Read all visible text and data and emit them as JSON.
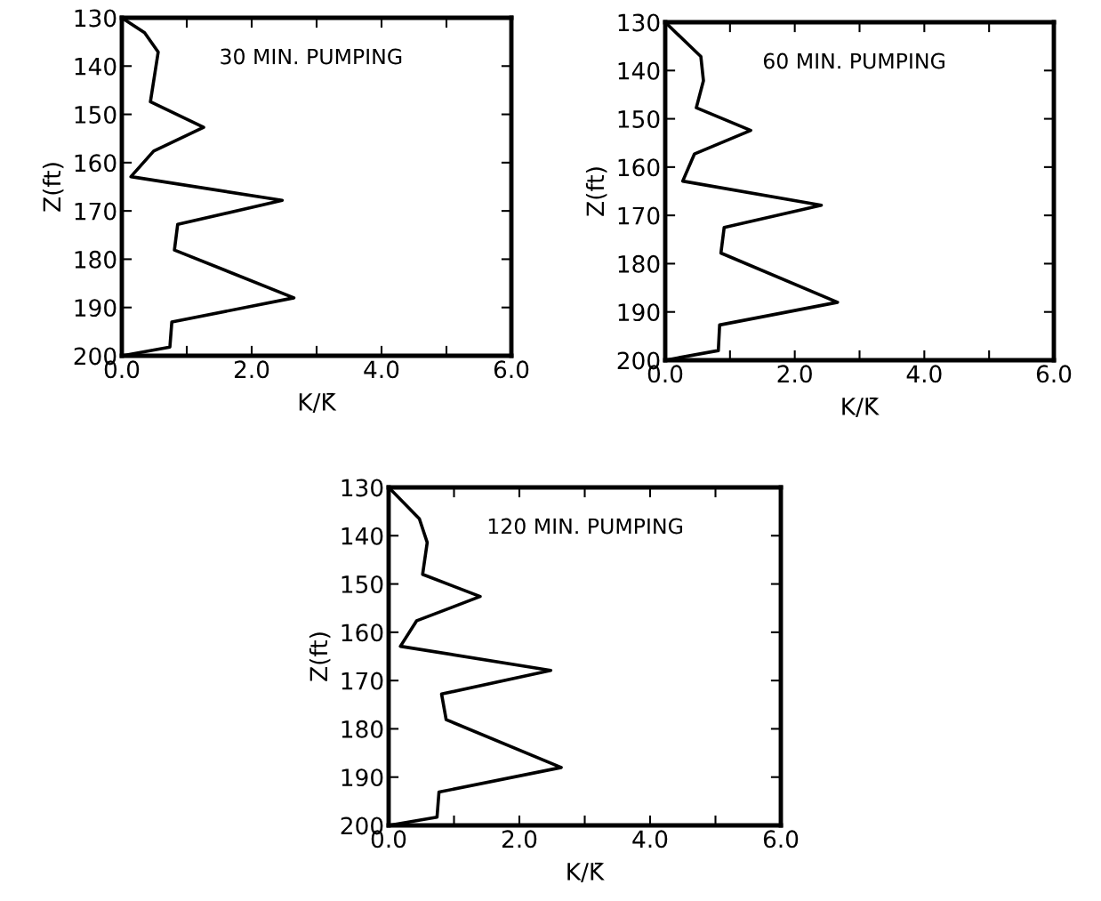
{
  "chart_data": [
    {
      "type": "line",
      "title": "30 MIN. PUMPING",
      "xlabel": "K/K̄",
      "ylabel": "Z(ft)",
      "series": [
        {
          "color": "#000000",
          "x": [
            0,
            0.35,
            0.56,
            0.44,
            1.26,
            0.49,
            0.14,
            2.47,
            0.86,
            0.81,
            2.65,
            0.77,
            0.74,
            0
          ],
          "values": [
            130,
            133.1,
            137.1,
            147.4,
            152.7,
            157.6,
            162.9,
            167.8,
            172.8,
            178.1,
            188,
            193,
            198.2,
            200
          ]
        }
      ],
      "xlim": [
        0,
        6
      ],
      "xticks": [
        {
          "value": 0,
          "label": "0.0"
        },
        {
          "value": 1,
          "label": null
        },
        {
          "value": 2,
          "label": "2.0"
        },
        {
          "value": 3,
          "label": null
        },
        {
          "value": 4,
          "label": "4.0"
        },
        {
          "value": 5,
          "label": null
        },
        {
          "value": 6,
          "label": "6.0"
        }
      ],
      "ylim": [
        200,
        130
      ],
      "yticks": [
        130,
        140,
        150,
        160,
        170,
        180,
        190,
        200
      ],
      "grid": false,
      "legend": false,
      "marker": "none",
      "line_style": "solid"
    },
    {
      "type": "line",
      "title": "60 MIN. PUMPING",
      "xlabel": "K/K̄",
      "ylabel": "Z(ft)",
      "series": [
        {
          "color": "#000000",
          "x": [
            0,
            0.55,
            0.59,
            0.48,
            1.32,
            0.45,
            0.27,
            2.41,
            0.91,
            0.86,
            2.66,
            0.84,
            0.82,
            0
          ],
          "values": [
            130,
            137.1,
            142.1,
            147.7,
            152.4,
            157.3,
            162.9,
            167.9,
            172.5,
            177.8,
            188,
            192.7,
            198,
            200
          ]
        }
      ],
      "xlim": [
        0,
        6
      ],
      "xticks": [
        {
          "value": 0,
          "label": "0.0"
        },
        {
          "value": 1,
          "label": null
        },
        {
          "value": 2,
          "label": "2.0"
        },
        {
          "value": 3,
          "label": null
        },
        {
          "value": 4,
          "label": "4.0"
        },
        {
          "value": 5,
          "label": null
        },
        {
          "value": 6,
          "label": "6.0"
        }
      ],
      "ylim": [
        200,
        130
      ],
      "yticks": [
        130,
        140,
        150,
        160,
        170,
        180,
        190,
        200
      ],
      "grid": false,
      "legend": false,
      "marker": "none",
      "line_style": "solid"
    },
    {
      "type": "line",
      "title": "120 MIN. PUMPING",
      "xlabel": "K/K̄",
      "ylabel": "Z(ft)",
      "series": [
        {
          "color": "#000000",
          "x": [
            0,
            0.47,
            0.59,
            0.52,
            1.4,
            0.43,
            0.18,
            2.48,
            0.81,
            0.88,
            2.64,
            0.77,
            0.74,
            0
          ],
          "values": [
            130,
            136.5,
            141.4,
            148,
            152.6,
            157.6,
            162.9,
            167.9,
            172.8,
            178.1,
            188,
            193.1,
            198.3,
            200
          ]
        }
      ],
      "xlim": [
        0,
        6
      ],
      "xticks": [
        {
          "value": 0,
          "label": "0.0"
        },
        {
          "value": 1,
          "label": null
        },
        {
          "value": 2,
          "label": "2.0"
        },
        {
          "value": 3,
          "label": null
        },
        {
          "value": 4,
          "label": "4.0"
        },
        {
          "value": 5,
          "label": null
        },
        {
          "value": 6,
          "label": "6.0"
        }
      ],
      "ylim": [
        200,
        130
      ],
      "yticks": [
        130,
        140,
        150,
        160,
        170,
        180,
        190,
        200
      ],
      "grid": false,
      "legend": false,
      "marker": "none",
      "line_style": "solid"
    }
  ]
}
